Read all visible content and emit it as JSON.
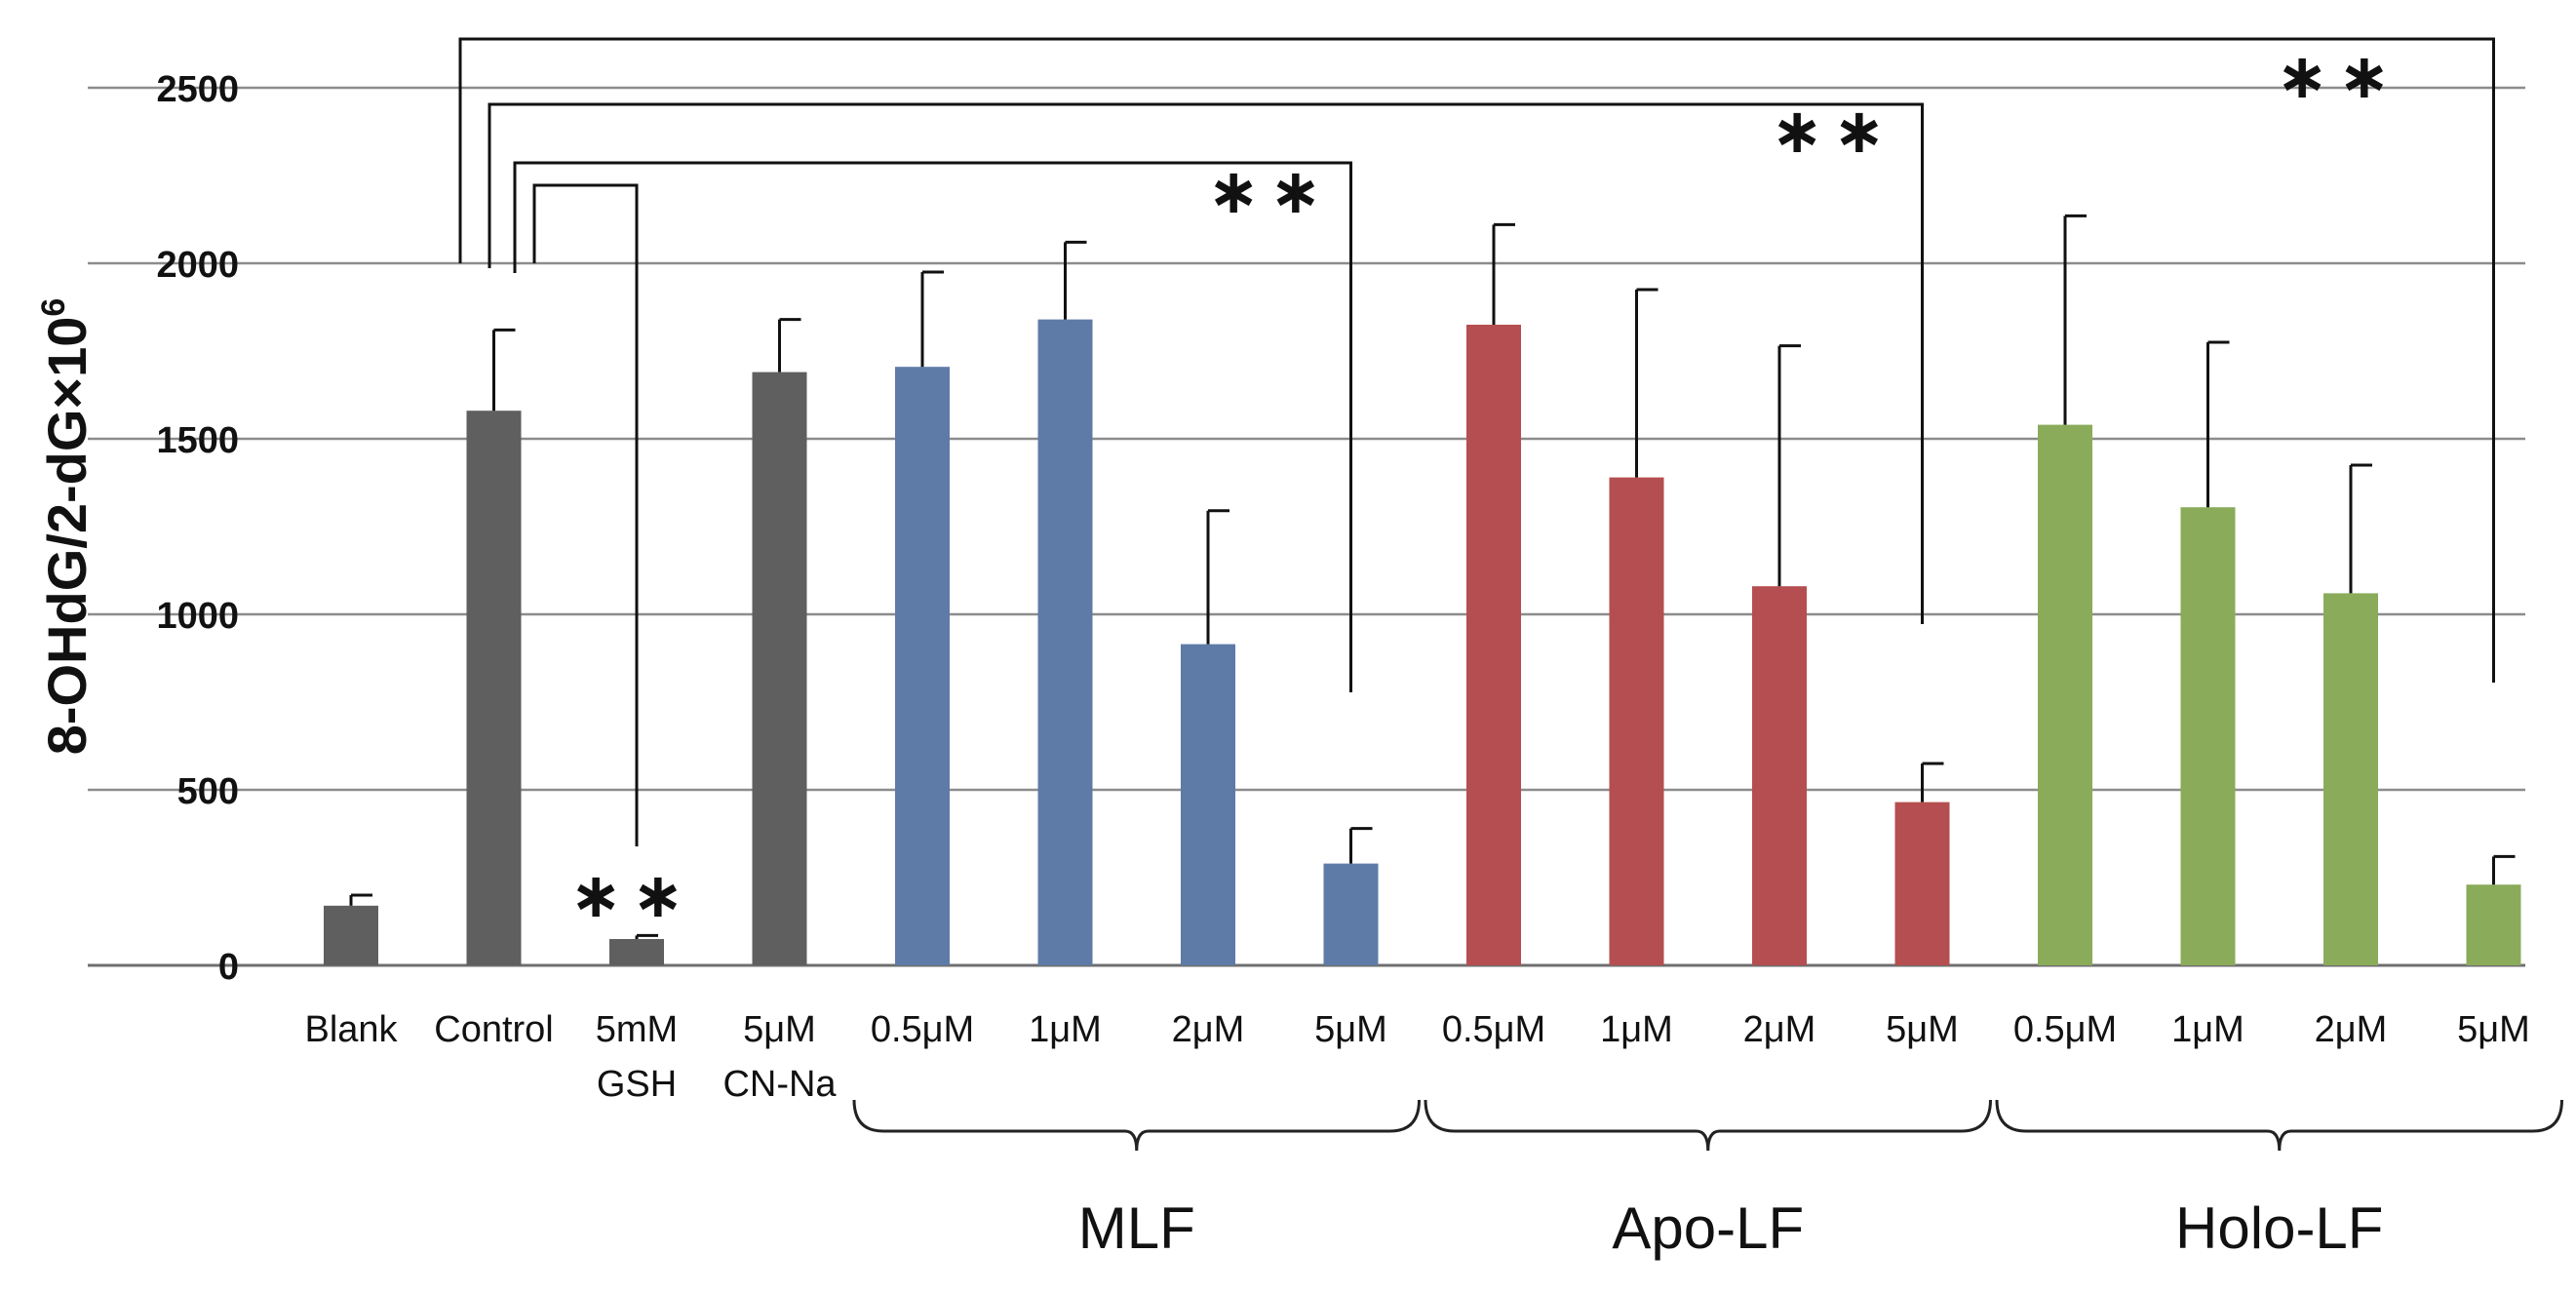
{
  "chart_data": {
    "type": "bar",
    "title": "",
    "ylabel": "8-OHdG/2-dG×10",
    "ylabel_superscript": "6",
    "ylim": [
      0,
      2500
    ],
    "yticks": [
      0,
      500,
      1000,
      1500,
      2000,
      2500
    ],
    "grid": true,
    "bars": [
      {
        "label": "Blank",
        "label2": "",
        "value": 170,
        "error": 30,
        "color": "#5f5f5f"
      },
      {
        "label": "Control",
        "label2": "",
        "value": 1580,
        "error": 230,
        "color": "#5f5f5f"
      },
      {
        "label": "5mM",
        "label2": "GSH",
        "value": 75,
        "error": 10,
        "color": "#5f5f5f"
      },
      {
        "label": "5μM",
        "label2": "CN-Na",
        "value": 1690,
        "error": 150,
        "color": "#5f5f5f"
      },
      {
        "label": "0.5μM",
        "label2": "",
        "value": 1705,
        "error": 270,
        "color": "#5e7ba8"
      },
      {
        "label": "1μM",
        "label2": "",
        "value": 1840,
        "error": 220,
        "color": "#5e7ba8"
      },
      {
        "label": "2μM",
        "label2": "",
        "value": 915,
        "error": 380,
        "color": "#5e7ba8"
      },
      {
        "label": "5μM",
        "label2": "",
        "value": 290,
        "error": 100,
        "color": "#5e7ba8"
      },
      {
        "label": "0.5μM",
        "label2": "",
        "value": 1825,
        "error": 285,
        "color": "#b54e50"
      },
      {
        "label": "1μM",
        "label2": "",
        "value": 1390,
        "error": 535,
        "color": "#b54e50"
      },
      {
        "label": "2μM",
        "label2": "",
        "value": 1080,
        "error": 685,
        "color": "#b54e50"
      },
      {
        "label": "5μM",
        "label2": "",
        "value": 465,
        "error": 110,
        "color": "#b54e50"
      },
      {
        "label": "0.5μM",
        "label2": "",
        "value": 1540,
        "error": 595,
        "color": "#8aab5a"
      },
      {
        "label": "1μM",
        "label2": "",
        "value": 1305,
        "error": 470,
        "color": "#8aab5a"
      },
      {
        "label": "2μM",
        "label2": "",
        "value": 1060,
        "error": 365,
        "color": "#8aab5a"
      },
      {
        "label": "5μM",
        "label2": "",
        "value": 230,
        "error": 80,
        "color": "#8aab5a"
      }
    ],
    "groups": [
      {
        "name": "MLF",
        "from": 4,
        "to": 7
      },
      {
        "name": "Apo-LF",
        "from": 8,
        "to": 11
      },
      {
        "name": "Holo-LF",
        "from": 12,
        "to": 15
      }
    ],
    "significance": [
      {
        "from": 1,
        "to": 2,
        "label": "**"
      },
      {
        "from": 1,
        "to": 7,
        "label": "**"
      },
      {
        "from": 1,
        "to": 11,
        "label": "**"
      },
      {
        "from": 1,
        "to": 15,
        "label": "**"
      }
    ]
  }
}
